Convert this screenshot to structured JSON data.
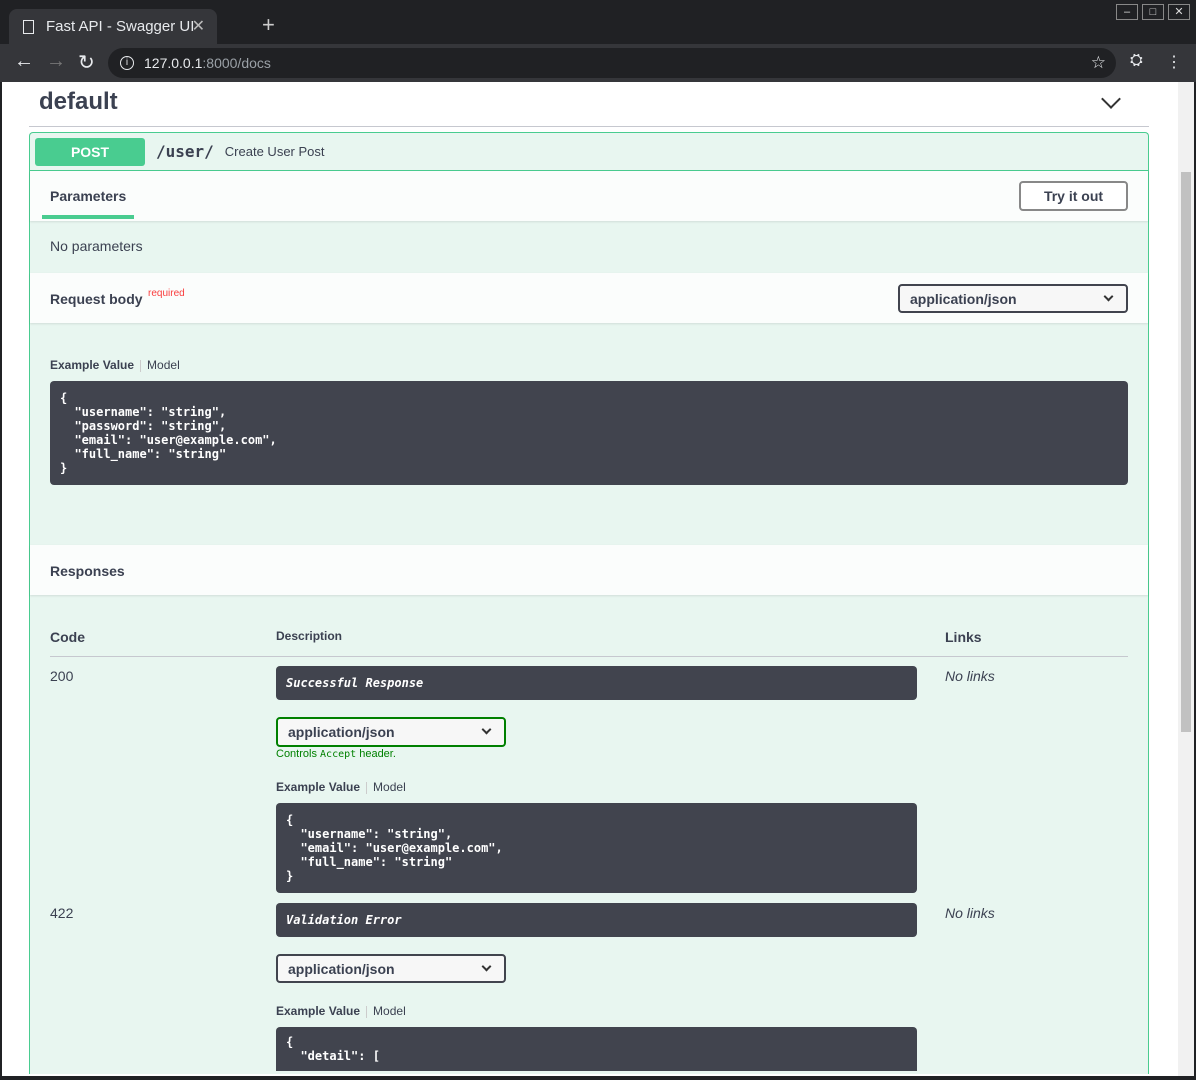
{
  "browser": {
    "tab_title": "Fast API - Swagger UI",
    "url_host": "127.0.0.1",
    "url_rest": ":8000/docs"
  },
  "section": {
    "title": "default"
  },
  "operation": {
    "method": "POST",
    "path": "/user/",
    "summary": "Create User Post"
  },
  "parameters": {
    "tab": "Parameters",
    "try_label": "Try it out",
    "none": "No parameters"
  },
  "request_body": {
    "label": "Request body",
    "required": "required",
    "content_type": "application/json",
    "example_label": "Example Value",
    "model_label": "Model",
    "example": "{\n  \"username\": \"string\",\n  \"password\": \"string\",\n  \"email\": \"user@example.com\",\n  \"full_name\": \"string\"\n}"
  },
  "responses": {
    "title": "Responses",
    "col_code": "Code",
    "col_desc": "Description",
    "col_links": "Links",
    "items": [
      {
        "code": "200",
        "description": "Successful Response",
        "content_type": "application/json",
        "controls_pre": "Controls ",
        "controls_code": "Accept",
        "controls_post": " header.",
        "example_label": "Example Value",
        "model_label": "Model",
        "example": "{\n  \"username\": \"string\",\n  \"email\": \"user@example.com\",\n  \"full_name\": \"string\"\n}",
        "links": "No links"
      },
      {
        "code": "422",
        "description": "Validation Error",
        "content_type": "application/json",
        "example_label": "Example Value",
        "model_label": "Model",
        "example": "{\n  \"detail\": [",
        "links": "No links"
      }
    ]
  }
}
